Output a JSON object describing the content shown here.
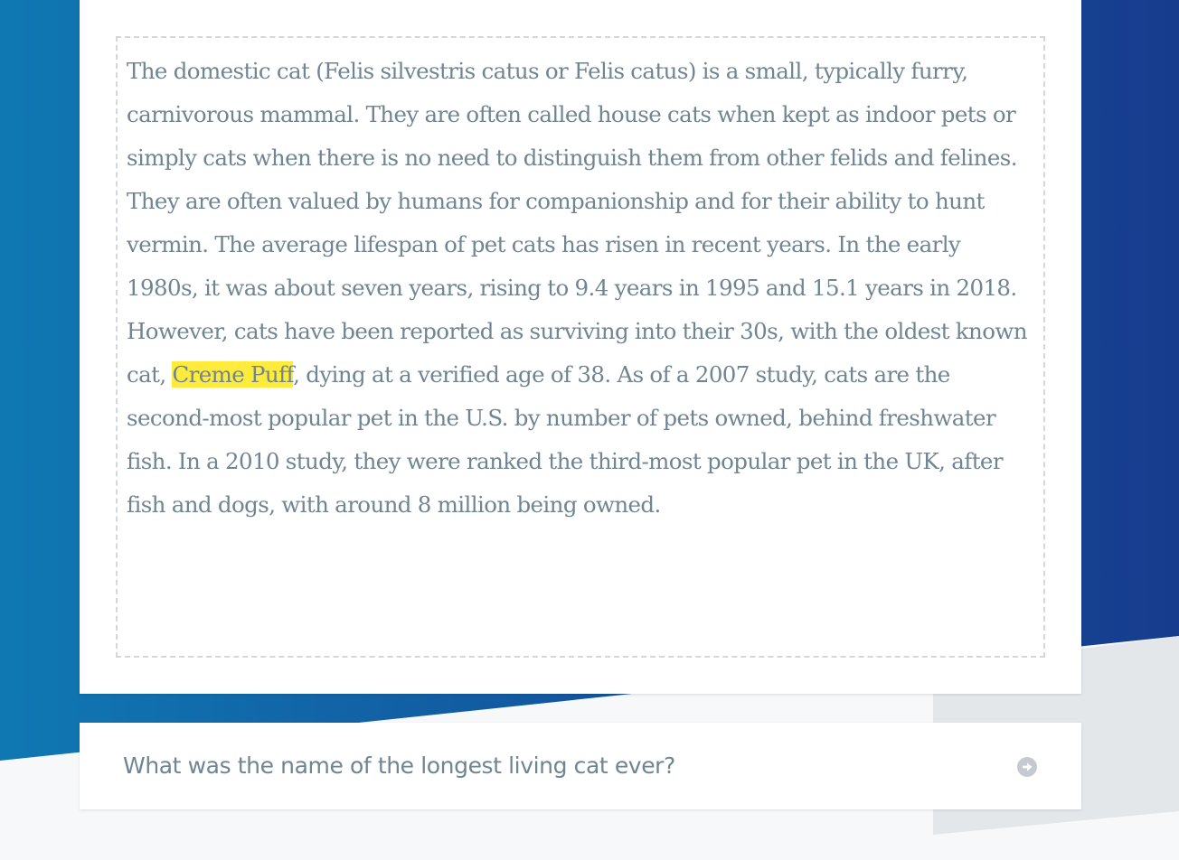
{
  "passage": {
    "text_before": "The domestic cat (Felis silvestris catus or Felis catus) is a small, typically furry, carnivorous mammal. They are often called house cats when kept as indoor pets or simply cats when there is no need to distinguish them from other felids and felines. They are often valued by humans for companionship and for their ability to hunt vermin. The average lifespan of pet cats has risen in recent years. In the early 1980s, it was about seven years, rising to 9.4 years in 1995 and 15.1 years in 2018. However, cats have been reported as surviving into their 30s, with the oldest known cat, ",
    "highlighted": "Creme Puff",
    "text_after": ", dying at a verified age of 38. As of a 2007 study, cats are the second-most popular pet in the U.S. by number of pets owned, behind freshwater fish. In a 2010 study, they were ranked the third-most popular pet in the UK, after fish and dogs, with around 8 million being owned."
  },
  "question": {
    "text": "What was the name of the longest living cat ever?",
    "submit_icon": "arrow-right-circle-icon"
  },
  "colors": {
    "text": "#6e8593",
    "highlight": "#ffeb3b",
    "bg_blue_left": "#0f75b0",
    "bg_blue_right": "#173e8f",
    "bg_light": "#f7f8f9"
  }
}
